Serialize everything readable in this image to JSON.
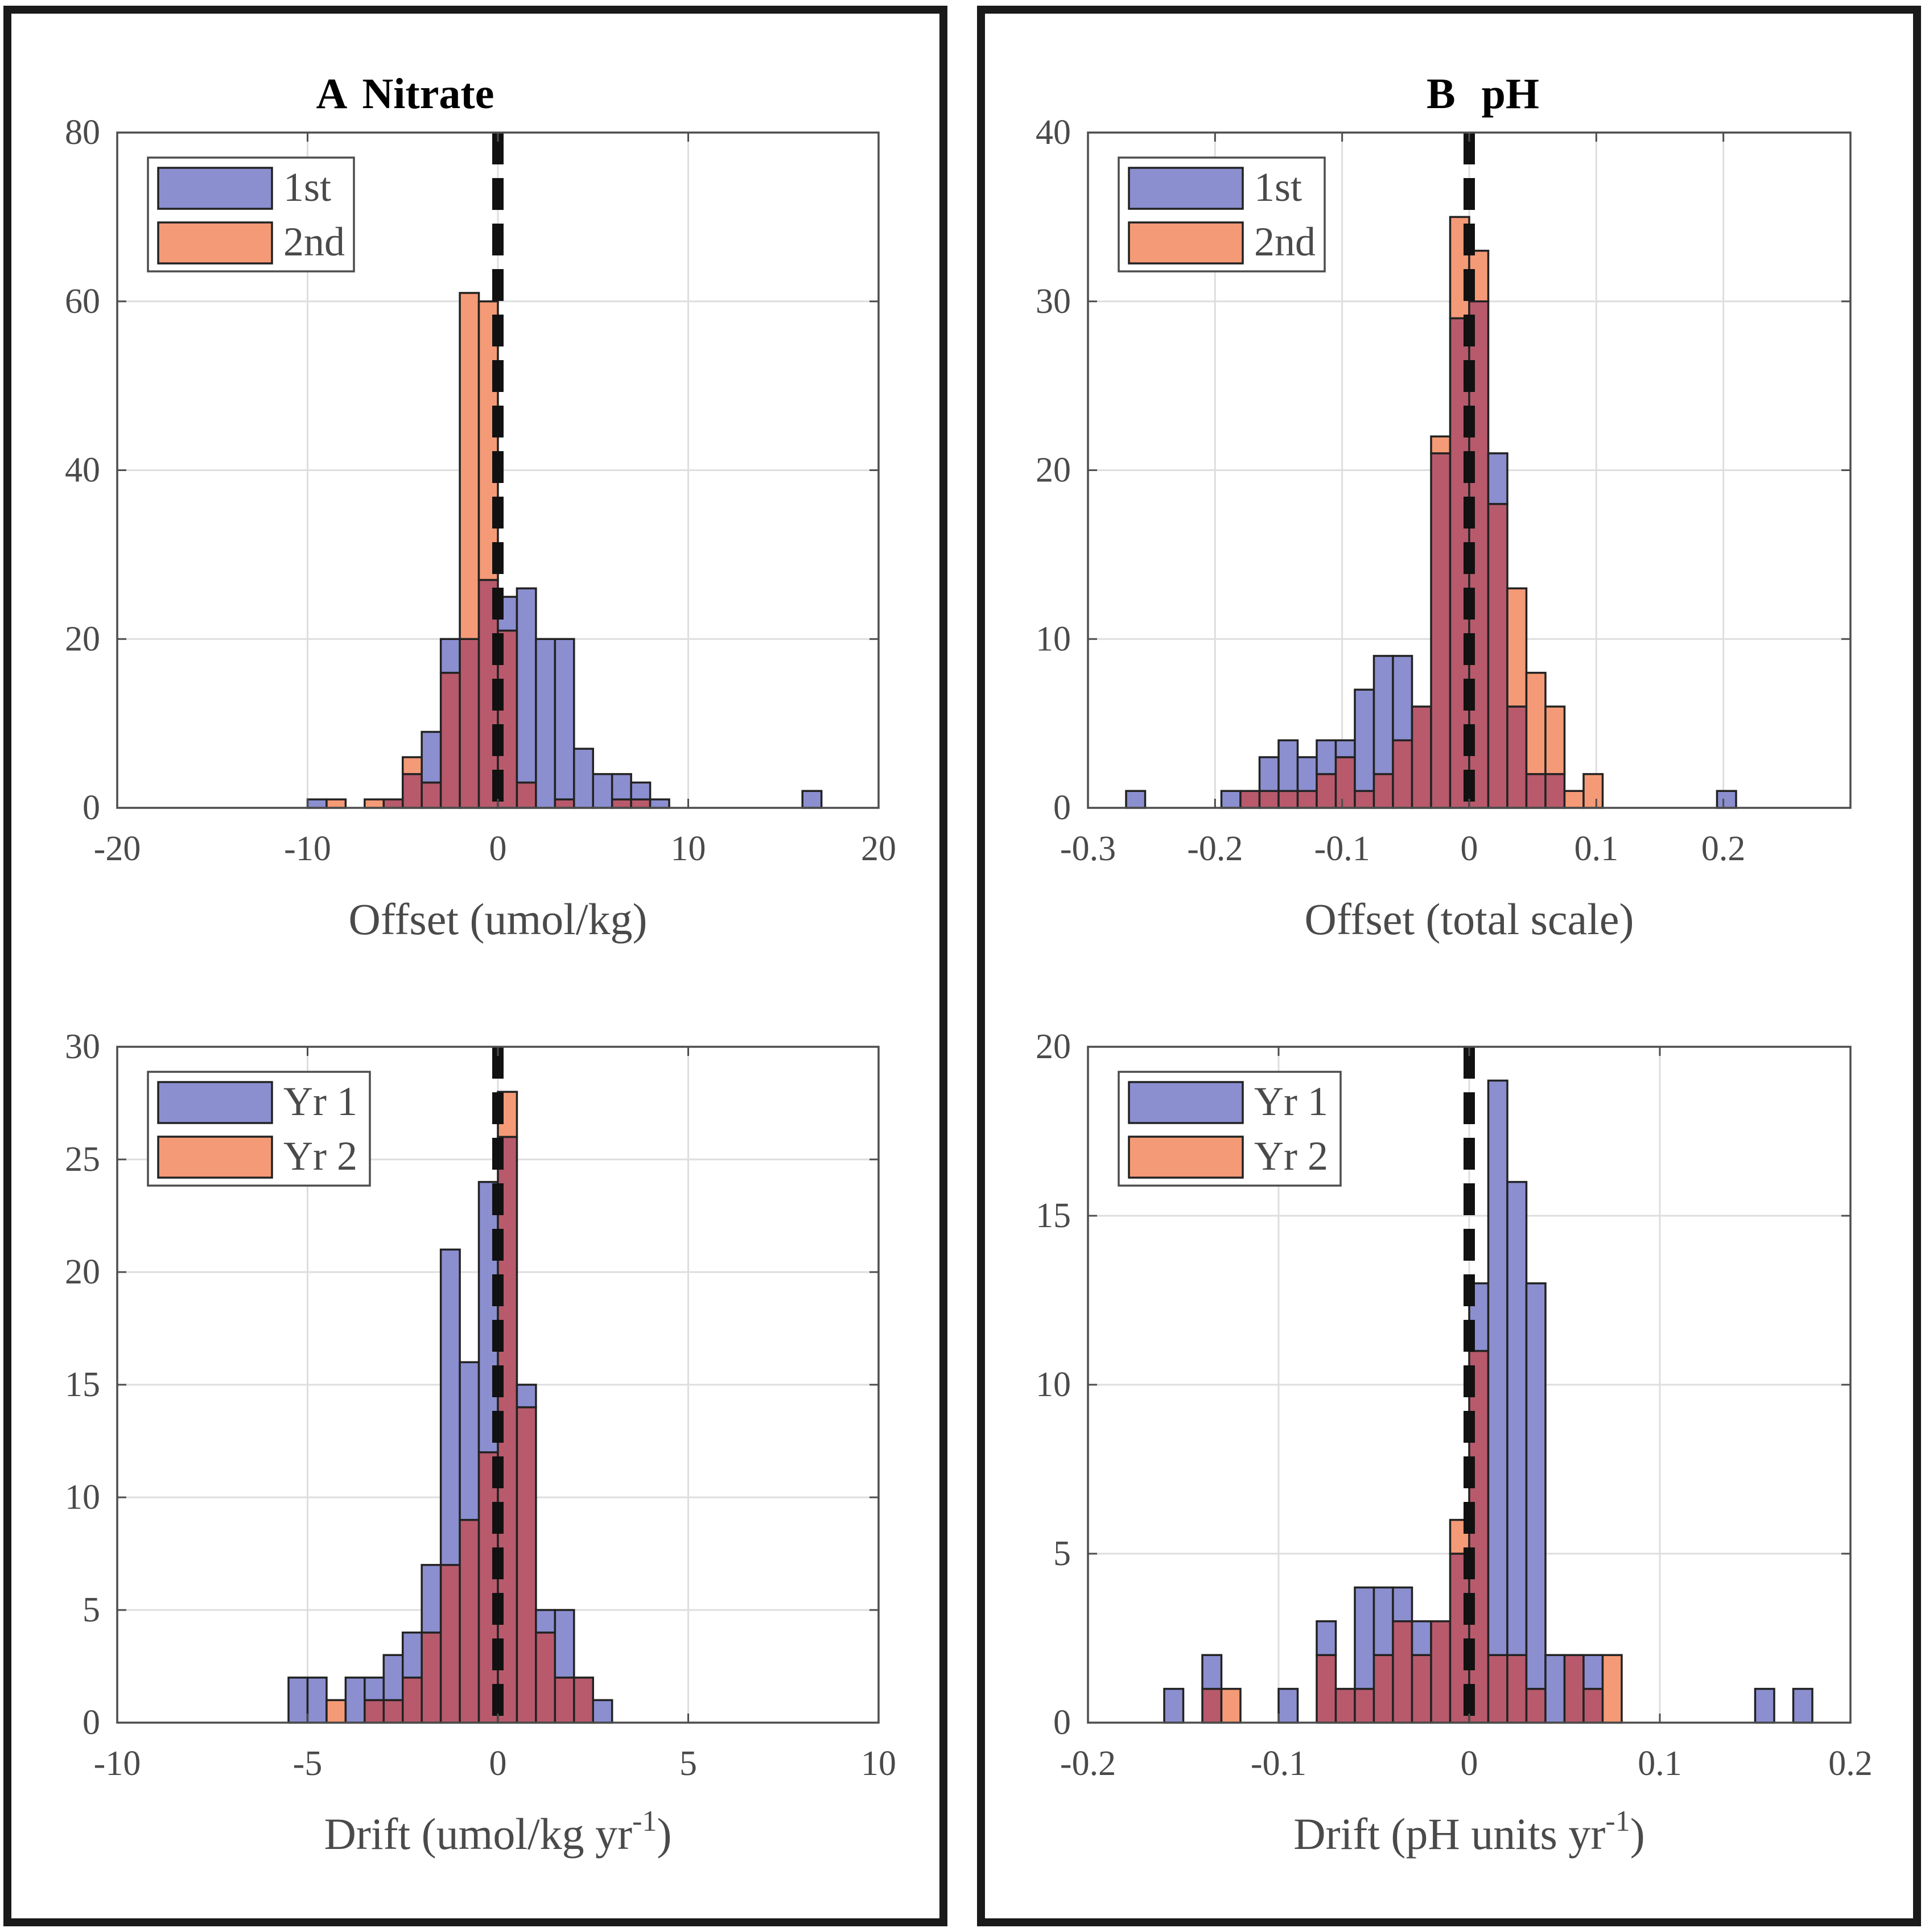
{
  "panels": {
    "a": {
      "letter": "A",
      "name": "Nitrate"
    },
    "b": {
      "letter": "B",
      "name": "pH"
    }
  },
  "colors": {
    "first": "#8b8fd0",
    "second": "#f59a76",
    "overlap": "#b85a6c",
    "grid": "#dedede",
    "axis": "#4d4d4d",
    "dashed_line": "#111111"
  },
  "chart_data": [
    {
      "id": "nitrate-offset",
      "panel": "a",
      "type": "bar",
      "title": "A Nitrate",
      "xlabel": "Offset (umol/kg)",
      "xlabel_sup": "",
      "ylabel": "",
      "xlim": [
        -20,
        20
      ],
      "ylim": [
        0,
        80
      ],
      "xticks": [
        -20,
        -10,
        0,
        10,
        20
      ],
      "xtick_labels": [
        "-20",
        "-10",
        "0",
        "10",
        "20"
      ],
      "yticks": [
        0,
        20,
        40,
        60,
        80
      ],
      "ytick_labels": [
        "0",
        "20",
        "40",
        "60",
        "80"
      ],
      "grid": true,
      "legend": [
        "1st",
        "2nd"
      ],
      "legend_position": "top-left",
      "ref_line": 0,
      "series": [
        {
          "name": "1st",
          "bin_edges": [
            -10,
            -9,
            -8,
            -7,
            -6,
            -5,
            -4,
            -3,
            -2,
            -1,
            0,
            1,
            2,
            3,
            4,
            5,
            6,
            7,
            8,
            9,
            10,
            11,
            12,
            13,
            14,
            15,
            16,
            17
          ],
          "values": [
            1,
            0,
            0,
            0,
            1,
            4,
            9,
            20,
            20,
            27,
            25,
            26,
            20,
            20,
            7,
            4,
            4,
            3,
            1,
            0,
            0,
            0,
            0,
            0,
            0,
            0,
            2
          ]
        },
        {
          "name": "2nd",
          "bin_edges": [
            -10,
            -9,
            -8,
            -7,
            -6,
            -5,
            -4,
            -3,
            -2,
            -1,
            0,
            1,
            2,
            3,
            4,
            5,
            6,
            7,
            8,
            9,
            10,
            11,
            12,
            13,
            14,
            15,
            16,
            17
          ],
          "values": [
            0,
            1,
            0,
            1,
            1,
            6,
            3,
            16,
            61,
            60,
            21,
            3,
            0,
            1,
            0,
            0,
            1,
            1,
            0,
            0,
            0,
            0,
            0,
            0,
            0,
            0,
            0
          ]
        }
      ]
    },
    {
      "id": "nitrate-drift",
      "panel": "a",
      "type": "bar",
      "title": "",
      "xlabel": "Drift (umol/kg yr",
      "xlabel_sup": "-1",
      "ylabel": "",
      "xlim": [
        -10,
        10
      ],
      "ylim": [
        0,
        30
      ],
      "xticks": [
        -10,
        -5,
        0,
        5,
        10
      ],
      "xtick_labels": [
        "-10",
        "-5",
        "0",
        "5",
        "10"
      ],
      "yticks": [
        0,
        5,
        10,
        15,
        20,
        25,
        30
      ],
      "ytick_labels": [
        "0",
        "5",
        "10",
        "15",
        "20",
        "25",
        "30"
      ],
      "grid": true,
      "legend": [
        "Yr 1",
        "Yr 2"
      ],
      "legend_position": "top-left",
      "ref_line": 0,
      "series": [
        {
          "name": "Yr 1",
          "bin_edges": [
            -5.5,
            -5,
            -4.5,
            -4,
            -3.5,
            -3,
            -2.5,
            -2,
            -1.5,
            -1,
            -0.5,
            0,
            0.5,
            1,
            1.5,
            2,
            2.5,
            3
          ],
          "values": [
            2,
            2,
            0,
            2,
            2,
            3,
            4,
            7,
            21,
            16,
            24,
            26,
            15,
            5,
            5,
            2,
            1
          ]
        },
        {
          "name": "Yr 2",
          "bin_edges": [
            -5.5,
            -5,
            -4.5,
            -4,
            -3.5,
            -3,
            -2.5,
            -2,
            -1.5,
            -1,
            -0.5,
            0,
            0.5,
            1,
            1.5,
            2,
            2.5,
            3
          ],
          "values": [
            0,
            0,
            1,
            0,
            1,
            1,
            2,
            4,
            7,
            9,
            12,
            28,
            14,
            4,
            2,
            2,
            0
          ]
        }
      ]
    },
    {
      "id": "ph-offset",
      "panel": "b",
      "type": "bar",
      "title": "B pH",
      "xlabel": "Offset (total scale)",
      "xlabel_sup": "",
      "ylabel": "",
      "xlim": [
        -0.3,
        0.3
      ],
      "ylim": [
        0,
        40
      ],
      "xticks": [
        -0.3,
        -0.2,
        -0.1,
        0,
        0.1,
        0.2
      ],
      "xtick_labels": [
        "-0.3",
        "-0.2",
        "-0.1",
        "0",
        "0.1",
        "0.2"
      ],
      "yticks": [
        0,
        10,
        20,
        30,
        40
      ],
      "ytick_labels": [
        "0",
        "10",
        "20",
        "30",
        "40"
      ],
      "grid": true,
      "legend": [
        "1st",
        "2nd"
      ],
      "legend_position": "top-left",
      "ref_line": 0,
      "series": [
        {
          "name": "1st",
          "bin_edges": [
            -0.27,
            -0.255,
            -0.24,
            -0.225,
            -0.21,
            -0.195,
            -0.18,
            -0.165,
            -0.15,
            -0.135,
            -0.12,
            -0.105,
            -0.09,
            -0.075,
            -0.06,
            -0.045,
            -0.03,
            -0.015,
            0,
            0.015,
            0.03,
            0.045,
            0.06,
            0.075,
            0.09,
            0.105,
            0.12,
            0.135,
            0.15,
            0.165,
            0.18,
            0.195,
            0.21
          ],
          "values": [
            1,
            0,
            0,
            0,
            0,
            1,
            1,
            3,
            4,
            3,
            4,
            4,
            7,
            9,
            9,
            6,
            21,
            29,
            30,
            21,
            6,
            2,
            2,
            0,
            0,
            0,
            0,
            0,
            0,
            0,
            0,
            1
          ]
        },
        {
          "name": "2nd",
          "bin_edges": [
            -0.27,
            -0.255,
            -0.24,
            -0.225,
            -0.21,
            -0.195,
            -0.18,
            -0.165,
            -0.15,
            -0.135,
            -0.12,
            -0.105,
            -0.09,
            -0.075,
            -0.06,
            -0.045,
            -0.03,
            -0.015,
            0,
            0.015,
            0.03,
            0.045,
            0.06,
            0.075,
            0.09,
            0.105,
            0.12,
            0.135,
            0.15,
            0.165,
            0.18,
            0.195,
            0.21
          ],
          "values": [
            0,
            0,
            0,
            0,
            0,
            0,
            1,
            1,
            1,
            1,
            2,
            3,
            1,
            2,
            4,
            6,
            22,
            35,
            33,
            18,
            13,
            8,
            6,
            1,
            2,
            0,
            0,
            0,
            0,
            0,
            0,
            0
          ]
        }
      ]
    },
    {
      "id": "ph-drift",
      "panel": "b",
      "type": "bar",
      "title": "",
      "xlabel": "Drift (pH units yr",
      "xlabel_sup": "-1",
      "ylabel": "",
      "xlim": [
        -0.2,
        0.2
      ],
      "ylim": [
        0,
        20
      ],
      "xticks": [
        -0.2,
        -0.1,
        0,
        0.1,
        0.2
      ],
      "xtick_labels": [
        "-0.2",
        "-0.1",
        "0",
        "0.1",
        "0.2"
      ],
      "yticks": [
        0,
        5,
        10,
        15,
        20
      ],
      "ytick_labels": [
        "0",
        "5",
        "10",
        "15",
        "20"
      ],
      "grid": true,
      "legend": [
        "Yr 1",
        "Yr 2"
      ],
      "legend_position": "top-left",
      "ref_line": 0,
      "series": [
        {
          "name": "Yr 1",
          "bin_edges": [
            -0.16,
            -0.15,
            -0.14,
            -0.13,
            -0.12,
            -0.11,
            -0.1,
            -0.09,
            -0.08,
            -0.07,
            -0.06,
            -0.05,
            -0.04,
            -0.03,
            -0.02,
            -0.01,
            0,
            0.01,
            0.02,
            0.03,
            0.04,
            0.05,
            0.06,
            0.07,
            0.08,
            0.09,
            0.1,
            0.11,
            0.12,
            0.13,
            0.14,
            0.15,
            0.16,
            0.17,
            0.18
          ],
          "values": [
            1,
            0,
            2,
            0,
            0,
            0,
            1,
            0,
            3,
            1,
            4,
            4,
            4,
            3,
            3,
            5,
            13,
            19,
            16,
            13,
            2,
            2,
            2,
            0,
            0,
            0,
            0,
            0,
            0,
            0,
            0,
            1,
            0,
            1
          ]
        },
        {
          "name": "Yr 2",
          "bin_edges": [
            -0.16,
            -0.15,
            -0.14,
            -0.13,
            -0.12,
            -0.11,
            -0.1,
            -0.09,
            -0.08,
            -0.07,
            -0.06,
            -0.05,
            -0.04,
            -0.03,
            -0.02,
            -0.01,
            0,
            0.01,
            0.02,
            0.03,
            0.04,
            0.05,
            0.06,
            0.07,
            0.08,
            0.09,
            0.1,
            0.11,
            0.12,
            0.13,
            0.14,
            0.15,
            0.16,
            0.17,
            0.18
          ],
          "values": [
            0,
            0,
            1,
            1,
            0,
            0,
            0,
            0,
            2,
            1,
            1,
            2,
            3,
            2,
            3,
            6,
            11,
            2,
            2,
            1,
            0,
            2,
            1,
            2,
            0,
            0,
            0,
            0,
            0,
            0,
            0,
            0,
            0,
            0
          ]
        }
      ]
    }
  ]
}
